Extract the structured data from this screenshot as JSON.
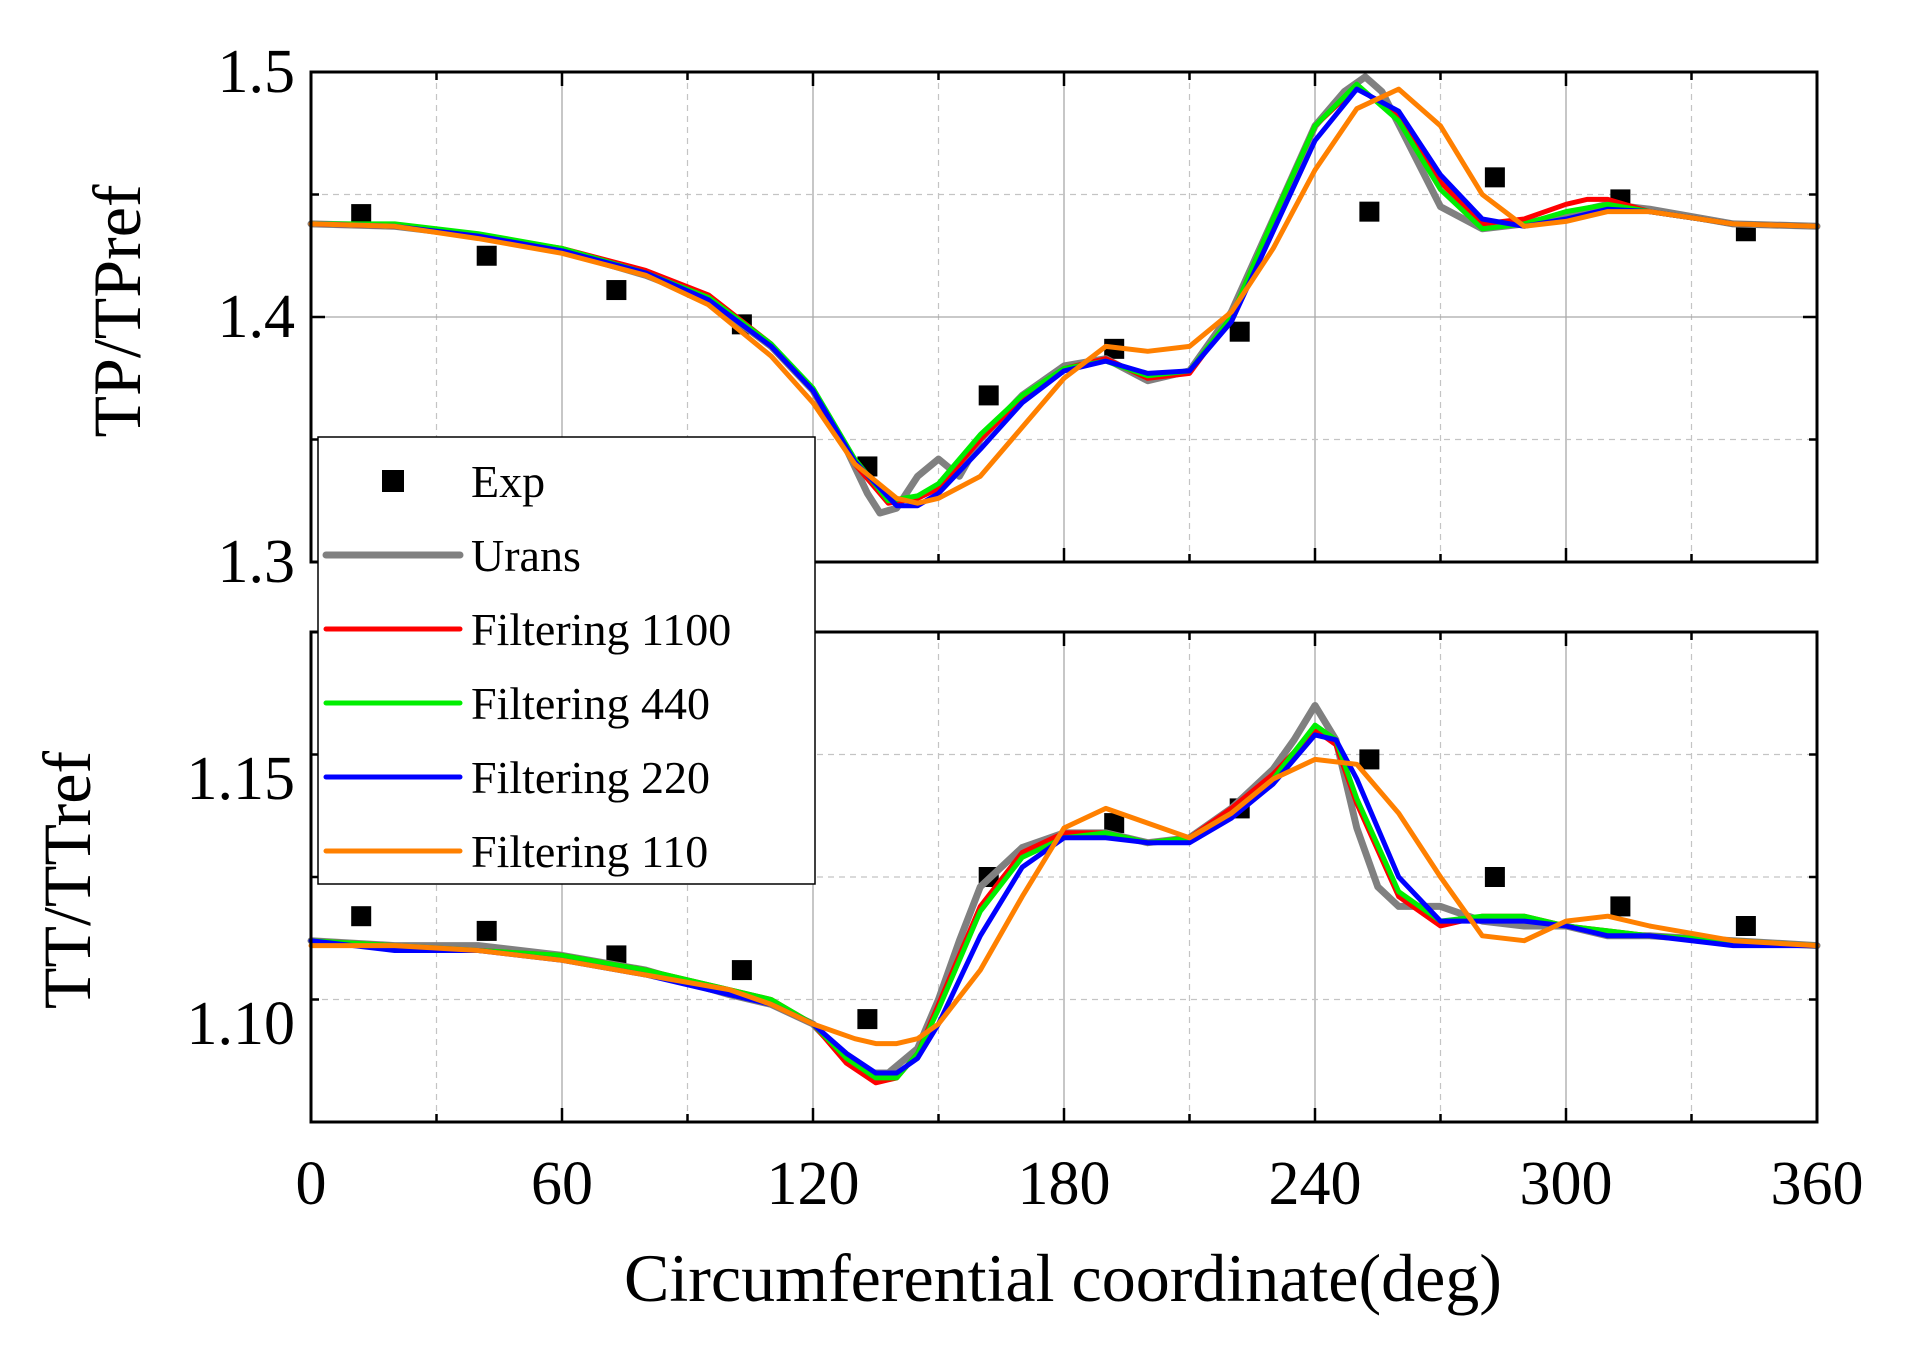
{
  "chart_data": [
    {
      "type": "line",
      "ylabel": "TP/TPref",
      "xlabel": "",
      "xlim": [
        0,
        360
      ],
      "ylim": [
        1.3,
        1.5
      ],
      "yticks": [
        1.3,
        1.4,
        1.5
      ],
      "ytick_labels": [
        "1.3",
        "1.4",
        "1.5"
      ],
      "grid": true,
      "series": [
        {
          "name": "Exp",
          "kind": "markers",
          "color": "#000000",
          "x": [
            12,
            42,
            73,
            103,
            133,
            162,
            192,
            222,
            253,
            283,
            313,
            343
          ],
          "y": [
            1.442,
            1.425,
            1.411,
            1.397,
            1.339,
            1.368,
            1.387,
            1.394,
            1.443,
            1.457,
            1.448,
            1.435
          ]
        },
        {
          "name": "Urans",
          "kind": "line",
          "color": "#808080",
          "x": [
            0,
            20,
            40,
            60,
            80,
            95,
            110,
            120,
            128,
            133,
            136,
            140,
            145,
            150,
            155,
            160,
            170,
            180,
            190,
            200,
            210,
            220,
            230,
            240,
            247,
            252,
            256,
            262,
            270,
            280,
            290,
            300,
            310,
            320,
            340,
            360
          ],
          "y": [
            1.438,
            1.437,
            1.433,
            1.427,
            1.417,
            1.407,
            1.388,
            1.37,
            1.346,
            1.328,
            1.32,
            1.322,
            1.335,
            1.342,
            1.335,
            1.35,
            1.368,
            1.38,
            1.383,
            1.374,
            1.378,
            1.402,
            1.44,
            1.478,
            1.492,
            1.498,
            1.492,
            1.472,
            1.445,
            1.436,
            1.438,
            1.442,
            1.446,
            1.444,
            1.438,
            1.437
          ]
        },
        {
          "name": "Filtering 1100",
          "kind": "line",
          "color": "#ff0000",
          "x": [
            0,
            20,
            40,
            60,
            80,
            95,
            110,
            120,
            130,
            138,
            145,
            150,
            160,
            170,
            180,
            190,
            200,
            210,
            220,
            230,
            240,
            250,
            260,
            270,
            280,
            290,
            300,
            305,
            310,
            320,
            340,
            360
          ],
          "y": [
            1.438,
            1.437,
            1.433,
            1.428,
            1.419,
            1.409,
            1.389,
            1.37,
            1.34,
            1.324,
            1.326,
            1.33,
            1.35,
            1.367,
            1.379,
            1.383,
            1.375,
            1.377,
            1.4,
            1.44,
            1.478,
            1.494,
            1.482,
            1.455,
            1.438,
            1.44,
            1.446,
            1.448,
            1.448,
            1.443,
            1.438,
            1.437
          ]
        },
        {
          "name": "Filtering 440",
          "kind": "line",
          "color": "#00ee00",
          "x": [
            0,
            20,
            40,
            60,
            80,
            95,
            110,
            120,
            130,
            138,
            145,
            150,
            160,
            170,
            180,
            190,
            200,
            210,
            220,
            230,
            240,
            250,
            260,
            270,
            280,
            290,
            300,
            310,
            320,
            340,
            360
          ],
          "y": [
            1.438,
            1.438,
            1.434,
            1.428,
            1.418,
            1.408,
            1.389,
            1.371,
            1.342,
            1.325,
            1.327,
            1.332,
            1.352,
            1.368,
            1.379,
            1.382,
            1.376,
            1.378,
            1.4,
            1.44,
            1.478,
            1.495,
            1.48,
            1.452,
            1.436,
            1.438,
            1.443,
            1.446,
            1.443,
            1.438,
            1.437
          ]
        },
        {
          "name": "Filtering 220",
          "kind": "line",
          "color": "#0000ff",
          "x": [
            0,
            20,
            40,
            60,
            80,
            95,
            110,
            120,
            130,
            140,
            145,
            150,
            160,
            170,
            180,
            190,
            200,
            210,
            220,
            230,
            240,
            250,
            260,
            270,
            280,
            290,
            300,
            310,
            320,
            340,
            360
          ],
          "y": [
            1.438,
            1.437,
            1.433,
            1.427,
            1.418,
            1.407,
            1.388,
            1.37,
            1.341,
            1.323,
            1.323,
            1.328,
            1.346,
            1.365,
            1.378,
            1.382,
            1.377,
            1.378,
            1.398,
            1.435,
            1.472,
            1.493,
            1.484,
            1.458,
            1.44,
            1.437,
            1.44,
            1.444,
            1.443,
            1.438,
            1.437
          ]
        },
        {
          "name": "Filtering 110",
          "kind": "line",
          "color": "#ff8000",
          "x": [
            0,
            20,
            40,
            60,
            80,
            95,
            110,
            120,
            130,
            140,
            145,
            150,
            160,
            170,
            180,
            190,
            200,
            210,
            220,
            230,
            240,
            250,
            260,
            270,
            280,
            290,
            300,
            310,
            320,
            340,
            360
          ],
          "y": [
            1.438,
            1.437,
            1.432,
            1.426,
            1.417,
            1.405,
            1.384,
            1.365,
            1.34,
            1.326,
            1.324,
            1.326,
            1.335,
            1.355,
            1.375,
            1.388,
            1.386,
            1.388,
            1.402,
            1.428,
            1.46,
            1.485,
            1.493,
            1.478,
            1.45,
            1.437,
            1.439,
            1.443,
            1.443,
            1.438,
            1.437
          ]
        }
      ]
    },
    {
      "type": "line",
      "ylabel": "TT/TTref",
      "xlabel": "Circumferential coordinate(deg)",
      "xlim": [
        0,
        360
      ],
      "ylim": [
        1.08,
        1.18
      ],
      "xticks": [
        0,
        60,
        120,
        180,
        240,
        300,
        360
      ],
      "xtick_labels": [
        "0",
        "60",
        "120",
        "180",
        "240",
        "300",
        "360"
      ],
      "yticks": [
        1.1,
        1.15
      ],
      "ytick_labels": [
        "1.10",
        "1.15"
      ],
      "grid": true,
      "series": [
        {
          "name": "Exp",
          "kind": "markers",
          "color": "#000000",
          "x": [
            12,
            42,
            73,
            103,
            133,
            162,
            192,
            222,
            253,
            283,
            313,
            343
          ],
          "y": [
            1.122,
            1.119,
            1.114,
            1.111,
            1.101,
            1.13,
            1.141,
            1.144,
            1.154,
            1.13,
            1.124,
            1.12
          ]
        },
        {
          "name": "Urans",
          "kind": "line",
          "color": "#808080",
          "x": [
            0,
            20,
            40,
            60,
            80,
            100,
            110,
            120,
            128,
            132,
            138,
            145,
            150,
            155,
            160,
            170,
            180,
            190,
            200,
            210,
            220,
            230,
            235,
            240,
            245,
            250,
            255,
            260,
            270,
            280,
            290,
            300,
            310,
            320,
            340,
            360
          ],
          "y": [
            1.117,
            1.116,
            1.116,
            1.114,
            1.111,
            1.106,
            1.104,
            1.1,
            1.093,
            1.09,
            1.09,
            1.095,
            1.105,
            1.117,
            1.128,
            1.136,
            1.139,
            1.139,
            1.137,
            1.138,
            1.144,
            1.152,
            1.158,
            1.165,
            1.158,
            1.14,
            1.128,
            1.124,
            1.124,
            1.121,
            1.12,
            1.12,
            1.118,
            1.118,
            1.117,
            1.116
          ]
        },
        {
          "name": "Filtering 1100",
          "kind": "line",
          "color": "#ff0000",
          "x": [
            0,
            20,
            40,
            60,
            80,
            100,
            110,
            120,
            128,
            135,
            140,
            145,
            150,
            160,
            170,
            180,
            190,
            200,
            210,
            220,
            230,
            240,
            245,
            250,
            260,
            270,
            280,
            290,
            300,
            310,
            320,
            340,
            360
          ],
          "y": [
            1.117,
            1.116,
            1.115,
            1.114,
            1.111,
            1.107,
            1.105,
            1.1,
            1.092,
            1.088,
            1.089,
            1.094,
            1.104,
            1.124,
            1.135,
            1.139,
            1.139,
            1.137,
            1.138,
            1.144,
            1.151,
            1.16,
            1.157,
            1.145,
            1.126,
            1.12,
            1.122,
            1.122,
            1.12,
            1.119,
            1.118,
            1.117,
            1.116
          ]
        },
        {
          "name": "Filtering 440",
          "kind": "line",
          "color": "#00ee00",
          "x": [
            0,
            20,
            40,
            60,
            80,
            100,
            110,
            120,
            128,
            135,
            140,
            145,
            150,
            160,
            170,
            180,
            190,
            200,
            210,
            220,
            230,
            240,
            245,
            250,
            260,
            270,
            280,
            290,
            300,
            310,
            320,
            340,
            360
          ],
          "y": [
            1.117,
            1.116,
            1.115,
            1.114,
            1.111,
            1.107,
            1.105,
            1.1,
            1.093,
            1.089,
            1.089,
            1.094,
            1.103,
            1.123,
            1.134,
            1.138,
            1.139,
            1.137,
            1.138,
            1.143,
            1.15,
            1.161,
            1.158,
            1.146,
            1.127,
            1.121,
            1.122,
            1.122,
            1.12,
            1.119,
            1.118,
            1.117,
            1.116
          ]
        },
        {
          "name": "Filtering 220",
          "kind": "line",
          "color": "#0000ff",
          "x": [
            0,
            20,
            40,
            60,
            80,
            100,
            110,
            120,
            128,
            135,
            140,
            145,
            150,
            160,
            170,
            180,
            190,
            200,
            210,
            220,
            230,
            240,
            245,
            250,
            260,
            270,
            280,
            290,
            300,
            310,
            320,
            340,
            360
          ],
          "y": [
            1.117,
            1.115,
            1.115,
            1.113,
            1.11,
            1.106,
            1.104,
            1.1,
            1.094,
            1.09,
            1.09,
            1.093,
            1.1,
            1.118,
            1.132,
            1.138,
            1.138,
            1.137,
            1.137,
            1.142,
            1.149,
            1.159,
            1.158,
            1.15,
            1.13,
            1.121,
            1.121,
            1.121,
            1.12,
            1.118,
            1.118,
            1.116,
            1.116
          ]
        },
        {
          "name": "Filtering 110",
          "kind": "line",
          "color": "#ff8000",
          "x": [
            0,
            20,
            40,
            60,
            80,
            100,
            110,
            120,
            130,
            135,
            140,
            145,
            150,
            160,
            170,
            180,
            190,
            200,
            210,
            220,
            230,
            240,
            250,
            260,
            270,
            280,
            290,
            300,
            310,
            320,
            340,
            360
          ],
          "y": [
            1.116,
            1.116,
            1.115,
            1.113,
            1.11,
            1.107,
            1.104,
            1.1,
            1.097,
            1.096,
            1.096,
            1.097,
            1.1,
            1.111,
            1.126,
            1.14,
            1.144,
            1.141,
            1.138,
            1.143,
            1.15,
            1.154,
            1.153,
            1.143,
            1.13,
            1.118,
            1.117,
            1.121,
            1.122,
            1.12,
            1.117,
            1.116
          ]
        }
      ]
    }
  ]
}
